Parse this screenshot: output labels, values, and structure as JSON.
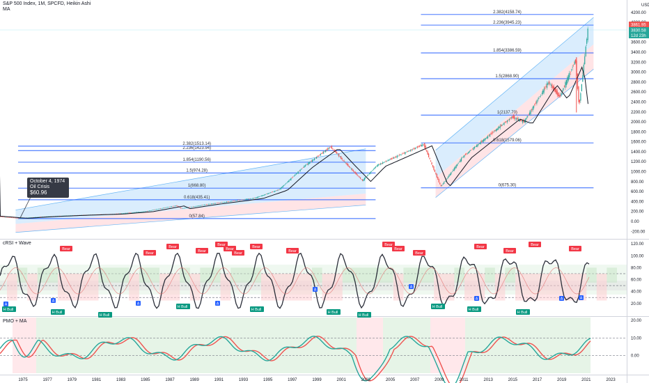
{
  "header": {
    "symbol_line": "S&P 500 Index, 1M, SPCFD, Heikin Ashi",
    "indicator": "MA"
  },
  "panels": {
    "rsi_label": "cRSI + Wave",
    "pmo_label": "PMO + MA"
  },
  "callout": {
    "date": "October 4, 1974",
    "event": "Oil Crisis",
    "price": "$60.96"
  },
  "price_tags": {
    "last": "3861.95",
    "second": "3830.58",
    "countdown": "12d 23h",
    "currency": "USD"
  },
  "colors": {
    "bull": "#26a69a",
    "bear": "#ef5350",
    "fib_line": "#2962ff",
    "channel_up": "#bbdefb",
    "channel_down": "#ffcdd2",
    "label_bear": "#f23645",
    "label_bull": "#089981",
    "label_a": "#2962ff"
  },
  "chart_data": [
    {
      "type": "line",
      "title": "",
      "x": [
        "1975",
        "1977",
        "1979",
        "1981",
        "1983",
        "1985",
        "1987",
        "1989",
        "1991",
        "1993",
        "1995",
        "1997",
        "1999",
        "2001",
        "2003",
        "2005",
        "2007",
        "2009",
        "2011",
        "2013",
        "2015",
        "2017",
        "2019",
        "2021",
        "2023"
      ],
      "ylim": [
        -200,
        4200
      ],
      "y_ticks": [
        "4200.00",
        "4000.00",
        "3800.00",
        "3600.00",
        "3400.00",
        "3200.00",
        "3000.00",
        "2800.00",
        "2600.00",
        "2400.00",
        "2200.00",
        "2000.00",
        "1800.00",
        "1600.00",
        "1400.00",
        "1200.00",
        "1000.00",
        "800.00",
        "600.00",
        "400.00",
        "200.00",
        "0.00",
        "-200.00"
      ],
      "series": [
        {
          "x": [
            1972.5,
            1974.75,
            1977,
            1980,
            1982.5,
            1985,
            1987.6,
            1988,
            1990,
            1994,
            1996,
            1998,
            2000.2,
            2001.5,
            2002.8,
            2004,
            2007.8,
            2009.2,
            2011,
            2013,
            2015,
            2016,
            2018,
            2018.9,
            2020.2,
            2020.5,
            2021.2
          ],
          "values": [
            110,
            65,
            100,
            130,
            150,
            200,
            320,
            260,
            340,
            470,
            640,
            1100,
            1500,
            1150,
            820,
            1130,
            1550,
            700,
            1300,
            1700,
            2100,
            2000,
            2800,
            2500,
            3250,
            2300,
            3850
          ]
        }
      ],
      "fib_sets": [
        {
          "levels": [
            {
              "label": "0(57.84)",
              "value": 57.84
            },
            {
              "label": "0.618(435.41)",
              "value": 435.41
            },
            {
              "label": "1(668.80)",
              "value": 668.8
            },
            {
              "label": "1.5(974.28)",
              "value": 974.28
            },
            {
              "label": "1.854(1190.56)",
              "value": 1190.56
            },
            {
              "label": "2.236(1423.94)",
              "value": 1423.94
            },
            {
              "label": "2.382(1513.14)",
              "value": 1513.14
            }
          ]
        },
        {
          "levels": [
            {
              "label": "0(675.30)",
              "value": 675.3
            },
            {
              "label": "0.618(1579.06)",
              "value": 1579.06
            },
            {
              "label": "1(2137.70)",
              "value": 2137.7
            },
            {
              "label": "1.5(2868.90)",
              "value": 2868.9
            },
            {
              "label": "1.854(3386.59)",
              "value": 3386.59
            },
            {
              "label": "2.236(3945.23)",
              "value": 3945.23
            },
            {
              "label": "2.382(4158.74)",
              "value": 4158.74
            }
          ]
        }
      ]
    },
    {
      "type": "line",
      "title": "cRSI + Wave",
      "ylim": [
        0,
        120
      ],
      "y_ticks": [
        "120.00",
        "100.00",
        "80.00",
        "60.00",
        "40.00",
        "20.00"
      ],
      "levels": [
        70,
        50,
        30
      ],
      "labels": [
        "Bear",
        "Bear",
        "Bear",
        "Bear",
        "Bear",
        "Bear",
        "Bear",
        "Bear",
        "Bear",
        "Bear",
        "Bear",
        "Bear",
        "Bear",
        "Bear",
        "Bear",
        "Bear",
        "H Bull",
        "H Bull",
        "H Bull",
        "H Bull",
        "H Bull",
        "H Bull",
        "H Bull",
        "H Bull",
        "H Bull",
        "H Bull"
      ]
    },
    {
      "type": "line",
      "title": "PMO + MA",
      "ylim": [
        -10,
        20
      ],
      "y_ticks": [
        "20.00",
        "10.00",
        "0.00"
      ],
      "levels": [
        10,
        0
      ]
    }
  ]
}
